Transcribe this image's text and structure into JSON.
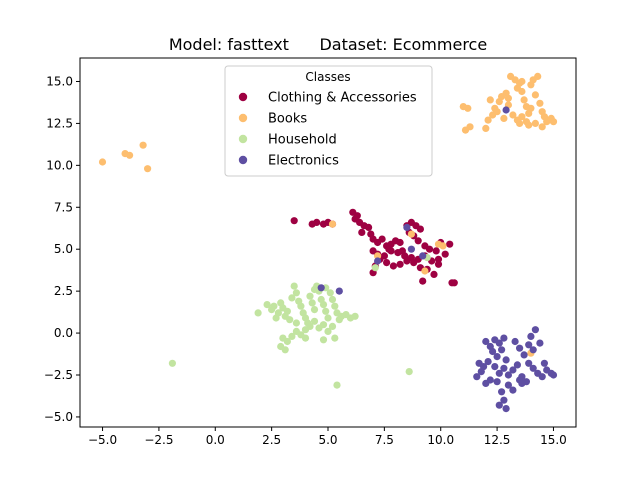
{
  "chart_data": {
    "type": "scatter",
    "title": "Model: fasttext      Dataset: Ecommerce",
    "xlabel": "",
    "ylabel": "",
    "xlim": [
      -6.0,
      16.0
    ],
    "ylim": [
      -5.6,
      16.4
    ],
    "xticks": [
      -5.0,
      -2.5,
      0.0,
      2.5,
      5.0,
      7.5,
      10.0,
      12.5,
      15.0
    ],
    "yticks": [
      -5.0,
      -2.5,
      0.0,
      2.5,
      5.0,
      7.5,
      10.0,
      12.5,
      15.0
    ],
    "xtick_labels": [
      "−5.0",
      "−2.5",
      "0.0",
      "2.5",
      "5.0",
      "7.5",
      "10.0",
      "12.5",
      "15.0"
    ],
    "ytick_labels": [
      "−5.0",
      "−2.5",
      "0.0",
      "2.5",
      "5.0",
      "7.5",
      "10.0",
      "12.5",
      "15.0"
    ],
    "grid": false,
    "legend": {
      "title": "Classes",
      "position": "top-center"
    },
    "series": [
      {
        "name": "Clothing & Accessories",
        "color": "#9e0142",
        "points": [
          [
            3.5,
            6.7
          ],
          [
            4.5,
            6.6
          ],
          [
            4.8,
            6.5
          ],
          [
            4.3,
            6.5
          ],
          [
            5.0,
            6.6
          ],
          [
            5.2,
            6.5
          ],
          [
            6.1,
            7.2
          ],
          [
            6.3,
            7.0
          ],
          [
            6.2,
            6.8
          ],
          [
            6.4,
            6.6
          ],
          [
            6.6,
            6.4
          ],
          [
            6.8,
            6.3
          ],
          [
            6.5,
            6.0
          ],
          [
            6.9,
            5.9
          ],
          [
            7.0,
            5.6
          ],
          [
            7.2,
            5.4
          ],
          [
            7.4,
            5.6
          ],
          [
            7.6,
            5.2
          ],
          [
            7.8,
            5.3
          ],
          [
            8.0,
            5.5
          ],
          [
            8.2,
            5.4
          ],
          [
            8.5,
            6.4
          ],
          [
            8.7,
            6.6
          ],
          [
            8.9,
            6.4
          ],
          [
            9.1,
            6.2
          ],
          [
            8.6,
            6.0
          ],
          [
            8.8,
            5.8
          ],
          [
            9.0,
            5.5
          ],
          [
            9.3,
            5.2
          ],
          [
            9.5,
            5.0
          ],
          [
            7.0,
            4.9
          ],
          [
            7.2,
            4.7
          ],
          [
            7.5,
            4.6
          ],
          [
            7.8,
            4.9
          ],
          [
            8.1,
            4.8
          ],
          [
            8.4,
            4.6
          ],
          [
            8.7,
            4.5
          ],
          [
            9.0,
            4.4
          ],
          [
            9.3,
            4.6
          ],
          [
            9.6,
            4.3
          ],
          [
            9.9,
            4.4
          ],
          [
            10.2,
            4.7
          ],
          [
            10.4,
            5.3
          ],
          [
            10.0,
            5.4
          ],
          [
            9.8,
            4.9
          ],
          [
            7.3,
            4.4
          ],
          [
            7.6,
            4.2
          ],
          [
            7.9,
            4.0
          ],
          [
            8.2,
            4.1
          ],
          [
            8.5,
            4.3
          ],
          [
            8.8,
            4.2
          ],
          [
            9.1,
            3.9
          ],
          [
            9.4,
            3.8
          ],
          [
            7.0,
            3.6
          ],
          [
            7.1,
            4.0
          ],
          [
            9.7,
            3.5
          ],
          [
            9.2,
            3.1
          ],
          [
            10.5,
            3.0
          ],
          [
            10.6,
            3.0
          ],
          [
            9.9,
            4.1
          ],
          [
            8.3,
            4.9
          ],
          [
            7.7,
            5.0
          ]
        ]
      },
      {
        "name": "Books",
        "color": "#fdbe6f",
        "points": [
          [
            -5.0,
            10.2
          ],
          [
            -4.0,
            10.7
          ],
          [
            -3.8,
            10.6
          ],
          [
            -3.2,
            11.2
          ],
          [
            -3.0,
            9.8
          ],
          [
            11.0,
            13.5
          ],
          [
            11.2,
            13.4
          ],
          [
            11.3,
            12.3
          ],
          [
            11.1,
            12.1
          ],
          [
            12.0,
            12.2
          ],
          [
            12.1,
            12.7
          ],
          [
            12.3,
            13.0
          ],
          [
            12.4,
            13.4
          ],
          [
            12.6,
            13.8
          ],
          [
            12.5,
            13.2
          ],
          [
            12.8,
            12.8
          ],
          [
            12.9,
            14.3
          ],
          [
            13.0,
            14.0
          ],
          [
            13.1,
            15.3
          ],
          [
            13.3,
            15.1
          ],
          [
            13.4,
            14.6
          ],
          [
            13.5,
            14.9
          ],
          [
            13.6,
            14.4
          ],
          [
            13.7,
            13.9
          ],
          [
            13.8,
            13.5
          ],
          [
            13.9,
            13.1
          ],
          [
            13.2,
            13.0
          ],
          [
            13.4,
            12.7
          ],
          [
            13.6,
            12.9
          ],
          [
            13.8,
            12.6
          ],
          [
            14.0,
            13.4
          ],
          [
            14.1,
            15.1
          ],
          [
            14.3,
            15.3
          ],
          [
            14.0,
            14.8
          ],
          [
            14.2,
            14.2
          ],
          [
            14.4,
            13.7
          ],
          [
            14.5,
            13.2
          ],
          [
            14.6,
            12.9
          ],
          [
            14.7,
            12.6
          ],
          [
            14.8,
            12.7
          ],
          [
            14.9,
            12.8
          ],
          [
            15.0,
            12.6
          ],
          [
            14.5,
            12.3
          ],
          [
            14.2,
            12.5
          ],
          [
            13.9,
            12.4
          ],
          [
            13.0,
            13.6
          ],
          [
            12.7,
            14.1
          ],
          [
            12.2,
            13.9
          ],
          [
            13.6,
            15.0
          ],
          [
            13.5,
            12.5
          ],
          [
            9.9,
            5.3
          ],
          [
            10.1,
            5.2
          ],
          [
            8.7,
            5.9
          ],
          [
            9.3,
            3.7
          ],
          [
            5.2,
            6.5
          ],
          [
            14.0,
            -1.2
          ],
          [
            7.2,
            4.6
          ]
        ]
      },
      {
        "name": "Household",
        "color": "#c2e4a0",
        "points": [
          [
            -1.9,
            -1.8
          ],
          [
            1.9,
            1.2
          ],
          [
            2.3,
            1.7
          ],
          [
            2.5,
            1.4
          ],
          [
            2.6,
            1.6
          ],
          [
            2.8,
            1.2
          ],
          [
            2.9,
            1.8
          ],
          [
            3.0,
            1.5
          ],
          [
            3.1,
            1.0
          ],
          [
            3.2,
            1.3
          ],
          [
            3.3,
            0.8
          ],
          [
            3.4,
            2.1
          ],
          [
            3.5,
            2.8
          ],
          [
            3.6,
            2.4
          ],
          [
            3.7,
            1.9
          ],
          [
            3.8,
            1.6
          ],
          [
            3.9,
            1.2
          ],
          [
            4.0,
            0.9
          ],
          [
            4.1,
            0.6
          ],
          [
            4.2,
            2.2
          ],
          [
            4.3,
            1.8
          ],
          [
            4.4,
            1.4
          ],
          [
            4.5,
            2.8
          ],
          [
            4.6,
            2.5
          ],
          [
            4.7,
            2.0
          ],
          [
            4.8,
            1.7
          ],
          [
            4.9,
            1.3
          ],
          [
            5.0,
            0.9
          ],
          [
            5.1,
            2.4
          ],
          [
            5.2,
            2.0
          ],
          [
            5.3,
            1.6
          ],
          [
            5.4,
            1.2
          ],
          [
            5.5,
            0.8
          ],
          [
            5.6,
            1.0
          ],
          [
            5.8,
            1.1
          ],
          [
            6.0,
            0.9
          ],
          [
            6.2,
            1.0
          ],
          [
            3.0,
            -0.3
          ],
          [
            3.2,
            -0.5
          ],
          [
            3.4,
            -0.2
          ],
          [
            3.6,
            0.1
          ],
          [
            3.8,
            -0.1
          ],
          [
            4.0,
            0.2
          ],
          [
            4.2,
            0.4
          ],
          [
            4.4,
            0.7
          ],
          [
            4.6,
            0.3
          ],
          [
            4.8,
            0.5
          ],
          [
            5.0,
            0.1
          ],
          [
            5.2,
            0.4
          ],
          [
            2.9,
            -0.8
          ],
          [
            3.1,
            -1.0
          ],
          [
            4.0,
            -0.3
          ],
          [
            4.8,
            -0.4
          ],
          [
            5.3,
            -0.3
          ],
          [
            3.6,
            0.6
          ],
          [
            2.7,
            0.9
          ],
          [
            4.4,
            2.6
          ],
          [
            4.9,
            2.7
          ],
          [
            5.4,
            -3.1
          ],
          [
            8.6,
            -2.3
          ],
          [
            7.1,
            3.9
          ],
          [
            9.4,
            4.5
          ]
        ]
      },
      {
        "name": "Electronics",
        "color": "#5e4fa2",
        "points": [
          [
            4.7,
            2.7
          ],
          [
            5.5,
            2.5
          ],
          [
            8.7,
            5.0
          ],
          [
            8.5,
            6.3
          ],
          [
            9.2,
            4.6
          ],
          [
            7.2,
            4.3
          ],
          [
            12.9,
            13.3
          ],
          [
            11.7,
            -1.8
          ],
          [
            11.8,
            -2.3
          ],
          [
            11.6,
            -2.6
          ],
          [
            12.0,
            -0.5
          ],
          [
            12.2,
            -0.8
          ],
          [
            12.4,
            -0.4
          ],
          [
            12.6,
            -0.6
          ],
          [
            12.8,
            -0.3
          ],
          [
            12.3,
            -1.1
          ],
          [
            12.5,
            -1.4
          ],
          [
            12.7,
            -1.0
          ],
          [
            12.9,
            -1.6
          ],
          [
            12.1,
            -1.7
          ],
          [
            12.4,
            -2.0
          ],
          [
            12.6,
            -2.4
          ],
          [
            12.8,
            -2.1
          ],
          [
            13.0,
            -2.5
          ],
          [
            13.2,
            -2.2
          ],
          [
            13.4,
            -1.9
          ],
          [
            13.6,
            -2.6
          ],
          [
            13.8,
            -2.9
          ],
          [
            13.5,
            -2.8
          ],
          [
            13.3,
            -0.5
          ],
          [
            13.5,
            -0.9
          ],
          [
            13.7,
            -1.3
          ],
          [
            13.9,
            -1.8
          ],
          [
            14.1,
            -2.1
          ],
          [
            14.3,
            -2.4
          ],
          [
            14.5,
            -2.6
          ],
          [
            14.7,
            -2.2
          ],
          [
            14.9,
            -2.4
          ],
          [
            15.0,
            -2.5
          ],
          [
            14.0,
            -0.2
          ],
          [
            14.2,
            0.2
          ],
          [
            14.4,
            -0.6
          ],
          [
            14.1,
            -1.0
          ],
          [
            13.9,
            -0.7
          ],
          [
            12.7,
            -3.5
          ],
          [
            12.8,
            -4.0
          ],
          [
            12.9,
            -4.5
          ],
          [
            12.6,
            -4.3
          ],
          [
            13.0,
            -3.1
          ],
          [
            13.2,
            -3.4
          ],
          [
            12.2,
            -2.8
          ],
          [
            12.0,
            -3.0
          ],
          [
            11.9,
            -2.0
          ],
          [
            12.5,
            -2.9
          ],
          [
            13.6,
            -3.0
          ],
          [
            14.6,
            -1.8
          ]
        ]
      }
    ]
  }
}
